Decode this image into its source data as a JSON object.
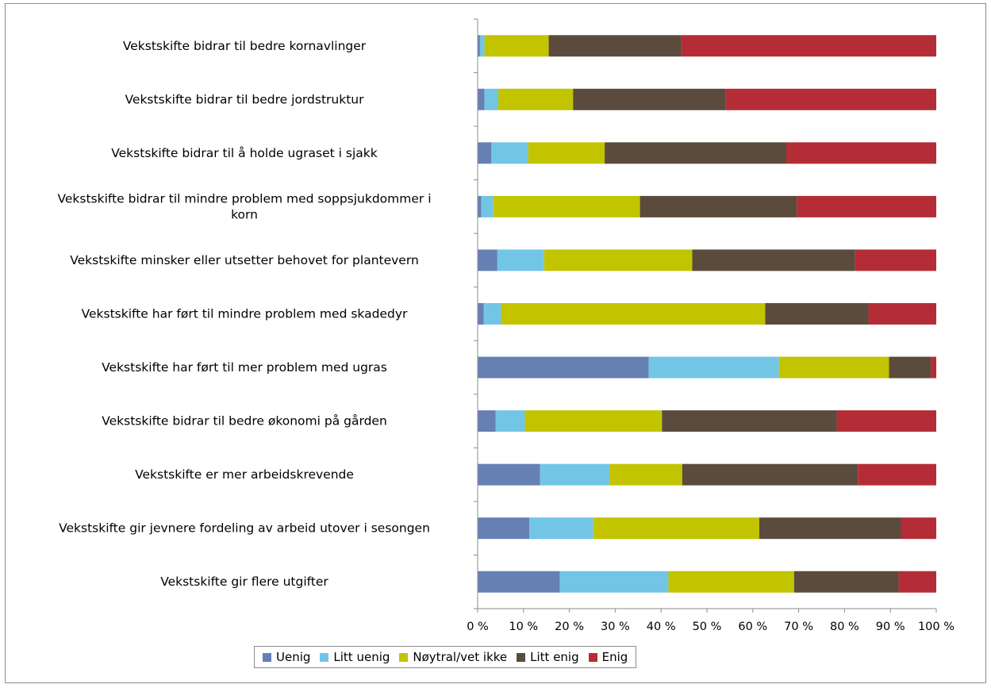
{
  "chart_data": {
    "type": "bar",
    "orientation": "horizontal",
    "stacked": "percent",
    "categories": [
      "Vekstskifte bidrar til bedre kornavlinger",
      "Vekstskifte bidrar til bedre jordstruktur",
      "Vekstskifte bidrar til å holde ugraset i sjakk",
      "Vekstskifte bidrar til mindre problem med soppsjukdommer i korn",
      "Vekstskifte minsker eller utsetter behovet for plantevern",
      "Vekstskifte har ført til mindre problem med skadedyr",
      "Vekstskifte har ført til mer problem med ugras",
      "Vekstskifte bidrar til bedre økonomi på gården",
      "Vekstskifte er mer arbeidskrevende",
      "Vekstskifte gir jevnere fordeling av arbeid utover i sesongen",
      "Vekstskifte gir flere utgifter"
    ],
    "series": [
      {
        "name": "Uenig",
        "color": "#6680b3",
        "values": [
          0.5,
          1.5,
          3.0,
          0.8,
          4.3,
          1.3,
          37.3,
          3.9,
          13.6,
          11.3,
          17.9
        ]
      },
      {
        "name": "Litt uenig",
        "color": "#73c5e6",
        "values": [
          1.0,
          3.0,
          8.0,
          2.6,
          10.2,
          3.8,
          28.4,
          6.4,
          15.1,
          13.9,
          23.7
        ]
      },
      {
        "name": "Nøytral/vet ikke",
        "color": "#c2c400",
        "values": [
          14.0,
          16.3,
          16.7,
          32.0,
          32.3,
          57.6,
          24.0,
          29.9,
          15.9,
          36.2,
          27.4
        ]
      },
      {
        "name": "Litt enig",
        "color": "#5a4b3c",
        "values": [
          28.9,
          33.2,
          39.6,
          34.2,
          35.5,
          22.5,
          9.1,
          38.1,
          38.3,
          30.9,
          22.8
        ]
      },
      {
        "name": "Enig",
        "color": "#b42d36",
        "values": [
          55.6,
          46.0,
          32.7,
          30.4,
          17.7,
          14.8,
          1.2,
          21.7,
          17.1,
          7.7,
          8.2
        ]
      }
    ],
    "xlim": [
      0,
      100
    ],
    "x_ticks": [
      "0 %",
      "10 %",
      "20 %",
      "30 %",
      "40 %",
      "50 %",
      "60 %",
      "70 %",
      "80 %",
      "90 %",
      "100 %"
    ],
    "legend_position": "bottom",
    "grid": false
  }
}
